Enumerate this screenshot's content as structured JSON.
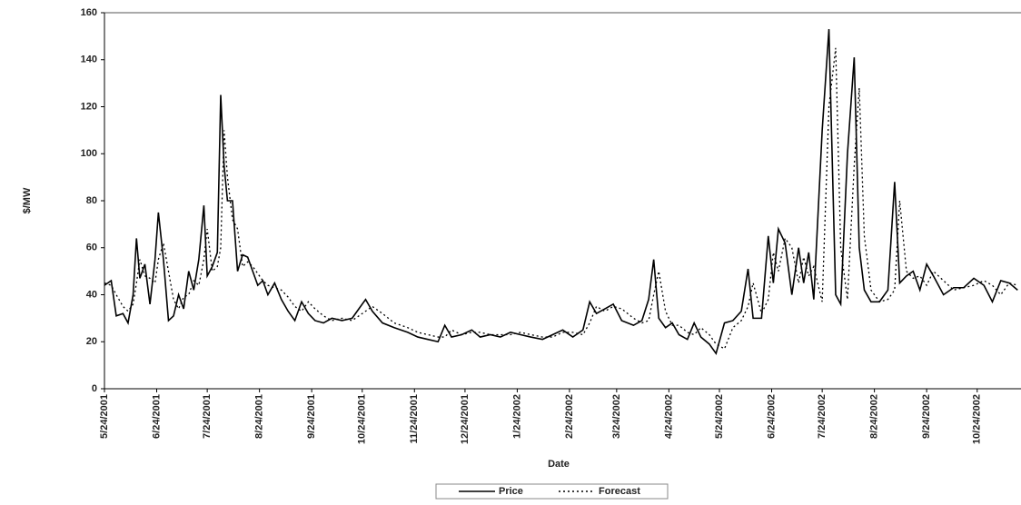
{
  "chart_data": {
    "type": "line",
    "y_label": "$/MW",
    "x_label": "Date",
    "xlim": [
      "2001-05-24",
      "2002-11-19"
    ],
    "xticks": [
      {
        "value": "2001-05-24",
        "label": "5/24/2001"
      },
      {
        "value": "2001-06-24",
        "label": "6/24/2001"
      },
      {
        "value": "2001-07-24",
        "label": "7/24/2001"
      },
      {
        "value": "2001-08-24",
        "label": "8/24/2001"
      },
      {
        "value": "2001-09-24",
        "label": "9/24/2001"
      },
      {
        "value": "2001-10-24",
        "label": "10/24/2001"
      },
      {
        "value": "2001-11-24",
        "label": "11/24/2001"
      },
      {
        "value": "2001-12-24",
        "label": "12/24/2001"
      },
      {
        "value": "2002-01-24",
        "label": "1/24/2002"
      },
      {
        "value": "2002-02-24",
        "label": "2/24/2002"
      },
      {
        "value": "2002-03-24",
        "label": "3/24/2002"
      },
      {
        "value": "2002-04-24",
        "label": "4/24/2002"
      },
      {
        "value": "2002-05-24",
        "label": "5/24/2002"
      },
      {
        "value": "2002-06-24",
        "label": "6/24/2002"
      },
      {
        "value": "2002-07-24",
        "label": "7/24/2002"
      },
      {
        "value": "2002-08-24",
        "label": "8/24/2002"
      },
      {
        "value": "2002-09-24",
        "label": "9/24/2002"
      },
      {
        "value": "2002-10-24",
        "label": "10/24/2002"
      }
    ],
    "ylim": [
      0,
      160
    ],
    "yticks": [
      0,
      20,
      40,
      60,
      80,
      100,
      120,
      140,
      160
    ],
    "x": [
      "2001-05-24",
      "2001-05-28",
      "2001-05-31",
      "2001-06-04",
      "2001-06-07",
      "2001-06-10",
      "2001-06-12",
      "2001-06-14",
      "2001-06-17",
      "2001-06-20",
      "2001-06-23",
      "2001-06-25",
      "2001-06-28",
      "2001-07-01",
      "2001-07-04",
      "2001-07-07",
      "2001-07-10",
      "2001-07-13",
      "2001-07-16",
      "2001-07-19",
      "2001-07-22",
      "2001-07-24",
      "2001-07-27",
      "2001-07-30",
      "2001-08-01",
      "2001-08-03",
      "2001-08-05",
      "2001-08-08",
      "2001-08-11",
      "2001-08-14",
      "2001-08-17",
      "2001-08-20",
      "2001-08-23",
      "2001-08-26",
      "2001-08-29",
      "2001-09-02",
      "2001-09-06",
      "2001-09-10",
      "2001-09-14",
      "2001-09-18",
      "2001-09-22",
      "2001-09-26",
      "2001-10-01",
      "2001-10-06",
      "2001-10-12",
      "2001-10-18",
      "2001-10-22",
      "2001-10-26",
      "2001-10-30",
      "2001-11-05",
      "2001-11-12",
      "2001-11-20",
      "2001-11-26",
      "2001-12-02",
      "2001-12-08",
      "2001-12-12",
      "2001-12-16",
      "2001-12-22",
      "2001-12-28",
      "2002-01-02",
      "2002-01-08",
      "2002-01-14",
      "2002-01-20",
      "2002-01-26",
      "2002-02-01",
      "2002-02-08",
      "2002-02-14",
      "2002-02-20",
      "2002-02-26",
      "2002-03-04",
      "2002-03-08",
      "2002-03-12",
      "2002-03-17",
      "2002-03-22",
      "2002-03-27",
      "2002-04-03",
      "2002-04-08",
      "2002-04-12",
      "2002-04-15",
      "2002-04-18",
      "2002-04-22",
      "2002-04-26",
      "2002-04-30",
      "2002-05-05",
      "2002-05-09",
      "2002-05-13",
      "2002-05-18",
      "2002-05-22",
      "2002-05-27",
      "2002-06-01",
      "2002-06-06",
      "2002-06-10",
      "2002-06-13",
      "2002-06-18",
      "2002-06-22",
      "2002-06-25",
      "2002-06-28",
      "2002-07-02",
      "2002-07-06",
      "2002-07-10",
      "2002-07-13",
      "2002-07-16",
      "2002-07-19",
      "2002-07-24",
      "2002-07-28",
      "2002-08-01",
      "2002-08-04",
      "2002-08-08",
      "2002-08-12",
      "2002-08-15",
      "2002-08-18",
      "2002-08-22",
      "2002-08-27",
      "2002-09-01",
      "2002-09-05",
      "2002-09-08",
      "2002-09-12",
      "2002-09-16",
      "2002-09-20",
      "2002-09-24",
      "2002-09-28",
      "2002-10-04",
      "2002-10-10",
      "2002-10-16",
      "2002-10-22",
      "2002-10-28",
      "2002-11-02",
      "2002-11-07",
      "2002-11-12",
      "2002-11-17"
    ],
    "series": [
      {
        "name": "Price",
        "color": "#000000",
        "dash": "none",
        "values": [
          44,
          46,
          31,
          32,
          28,
          40,
          64,
          47,
          53,
          36,
          55,
          75,
          55,
          29,
          31,
          40,
          34,
          50,
          42,
          55,
          78,
          48,
          52,
          58,
          125,
          95,
          80,
          80,
          50,
          57,
          56,
          50,
          44,
          46,
          40,
          45,
          38,
          33,
          29,
          37,
          32,
          29,
          28,
          30,
          29,
          30,
          34,
          38,
          33,
          28,
          26,
          24,
          22,
          21,
          20,
          27,
          22,
          23,
          25,
          22,
          23,
          22,
          24,
          23,
          22,
          21,
          23,
          25,
          22,
          25,
          37,
          32,
          34,
          36,
          29,
          27,
          29,
          38,
          55,
          30,
          26,
          28,
          23,
          21,
          28,
          22,
          19,
          15,
          28,
          29,
          33,
          51,
          30,
          30,
          65,
          45,
          68,
          62,
          40,
          60,
          45,
          58,
          38,
          110,
          153,
          40,
          36,
          100,
          141,
          60,
          42,
          37,
          37,
          42,
          88,
          45,
          48,
          50,
          42,
          53,
          48,
          40,
          43,
          43,
          47,
          44,
          37,
          46,
          45,
          42
        ]
      },
      {
        "name": "Forecast",
        "color": "#000000",
        "dash": "2,3",
        "values": [
          45,
          44,
          40,
          35,
          33,
          36,
          45,
          55,
          48,
          47,
          45,
          55,
          62,
          50,
          38,
          34,
          39,
          40,
          46,
          44,
          55,
          68,
          50,
          52,
          60,
          110,
          90,
          72,
          68,
          52,
          54,
          52,
          49,
          46,
          44,
          43,
          42,
          39,
          35,
          33,
          37,
          34,
          31,
          29,
          30,
          29,
          31,
          33,
          35,
          32,
          28,
          26,
          24,
          23,
          22,
          22,
          25,
          23,
          24,
          24,
          23,
          23,
          23,
          24,
          23,
          22,
          22,
          24,
          24,
          23,
          28,
          35,
          33,
          35,
          34,
          30,
          28,
          29,
          40,
          50,
          33,
          27,
          27,
          24,
          23,
          26,
          23,
          19,
          17,
          26,
          29,
          35,
          45,
          32,
          38,
          58,
          50,
          64,
          60,
          45,
          56,
          48,
          52,
          37,
          120,
          145,
          60,
          38,
          95,
          128,
          65,
          42,
          37,
          38,
          42,
          80,
          50,
          47,
          48,
          44,
          50,
          46,
          42,
          43,
          44,
          46,
          44,
          40,
          45,
          44
        ]
      }
    ]
  }
}
